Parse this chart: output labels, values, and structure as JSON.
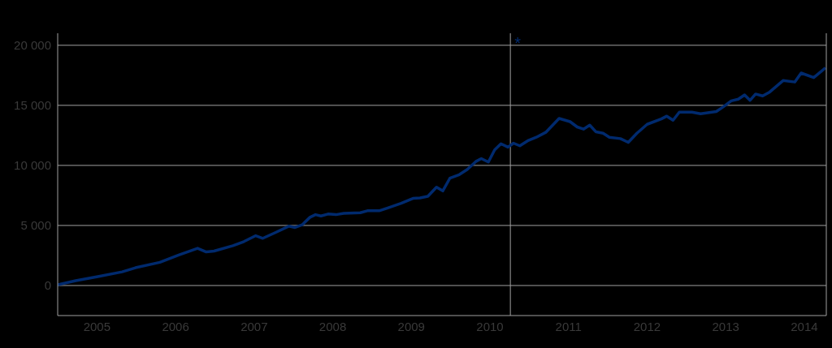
{
  "chart_data": {
    "type": "line",
    "x": [
      2005.0,
      2005.23,
      2005.51,
      2005.82,
      2005.99,
      2006.3,
      2006.54,
      2006.78,
      2006.89,
      2006.99,
      2007.23,
      2007.37,
      2007.52,
      2007.61,
      2007.78,
      2007.94,
      2008.02,
      2008.11,
      2008.21,
      2008.28,
      2008.35,
      2008.44,
      2008.54,
      2008.64,
      2008.85,
      2008.94,
      2009.09,
      2009.2,
      2009.37,
      2009.52,
      2009.61,
      2009.71,
      2009.82,
      2009.9,
      2009.99,
      2010.11,
      2010.21,
      2010.32,
      2010.39,
      2010.48,
      2010.56,
      2010.64,
      2010.73,
      2010.8,
      2010.88,
      2010.99,
      2011.09,
      2011.21,
      2011.38,
      2011.52,
      2011.61,
      2011.69,
      2011.77,
      2011.85,
      2011.94,
      2012.02,
      2012.16,
      2012.26,
      2012.37,
      2012.5,
      2012.68,
      2012.75,
      2012.83,
      2012.91,
      2013.07,
      2013.18,
      2013.38,
      2013.47,
      2013.57,
      2013.66,
      2013.74,
      2013.81,
      2013.88,
      2013.97,
      2014.06,
      2014.23,
      2014.38,
      2014.46,
      2014.62,
      2014.77
    ],
    "series": [
      {
        "color": "#002a6e",
        "values": [
          70,
          400,
          740,
          1140,
          1480,
          1930,
          2540,
          3100,
          2800,
          2870,
          3320,
          3660,
          4150,
          3930,
          4440,
          4940,
          4830,
          5050,
          5680,
          5900,
          5790,
          5950,
          5900,
          6010,
          6060,
          6220,
          6220,
          6460,
          6850,
          7250,
          7290,
          7430,
          8190,
          7880,
          8930,
          9230,
          9650,
          10320,
          10570,
          10280,
          11290,
          11800,
          11520,
          11850,
          11630,
          12080,
          12340,
          12750,
          13910,
          13640,
          13200,
          13020,
          13350,
          12790,
          12680,
          12340,
          12230,
          11920,
          12680,
          13420,
          13870,
          14100,
          13760,
          14430,
          14430,
          14300,
          14480,
          14880,
          15370,
          15510,
          15870,
          15420,
          15940,
          15780,
          16110,
          17060,
          16940,
          17690,
          17310,
          18130
        ]
      }
    ],
    "xlim": [
      2005,
      2014.78
    ],
    "xticks": [
      {
        "value": 2005.5,
        "label": "2005"
      },
      {
        "value": 2006.5,
        "label": "2006"
      },
      {
        "value": 2007.5,
        "label": "2007"
      },
      {
        "value": 2008.5,
        "label": "2008"
      },
      {
        "value": 2009.5,
        "label": "2009"
      },
      {
        "value": 2010.5,
        "label": "2010"
      },
      {
        "value": 2011.5,
        "label": "2011"
      },
      {
        "value": 2012.5,
        "label": "2012"
      },
      {
        "value": 2013.5,
        "label": "2013"
      },
      {
        "value": 2014.5,
        "label": "2014"
      }
    ],
    "ylim": [
      -2500,
      21000
    ],
    "yticks": [
      0,
      {
        "value": 5000,
        "label": "5 000"
      },
      {
        "value": 10000,
        "label": "10 000"
      },
      {
        "value": 15000,
        "label": "15 000"
      },
      {
        "value": 20000,
        "label": "20 000"
      }
    ],
    "grid": "y",
    "marker": "none",
    "ref_lines": [
      {
        "axis": "x",
        "value": 2010.76,
        "color": "#a0a0a0"
      }
    ],
    "annotations": [
      "*"
    ]
  }
}
